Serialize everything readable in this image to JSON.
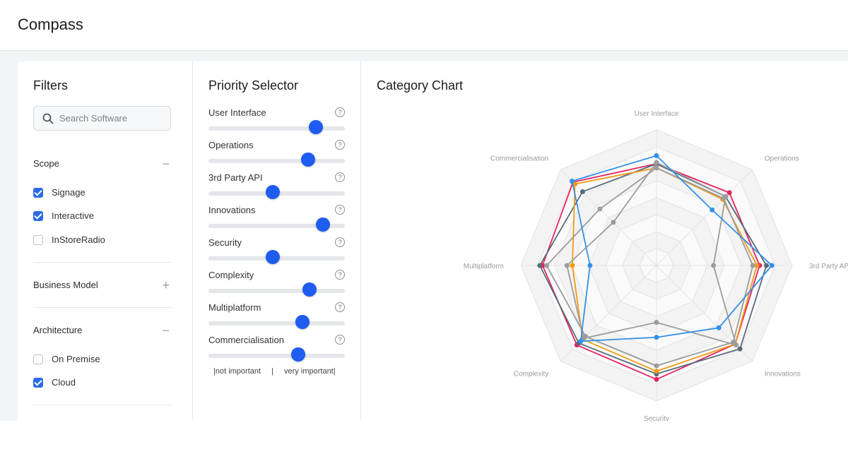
{
  "app": {
    "title": "Compass"
  },
  "filters": {
    "title": "Filters",
    "search": {
      "placeholder": "Search Software",
      "value": ""
    },
    "groups": [
      {
        "name": "Scope",
        "toggle": "−",
        "expanded": true,
        "options": [
          {
            "label": "Signage",
            "checked": true
          },
          {
            "label": "Interactive",
            "checked": true
          },
          {
            "label": "InStoreRadio",
            "checked": false
          }
        ]
      },
      {
        "name": "Business Model",
        "toggle": "+",
        "expanded": false,
        "options": []
      },
      {
        "name": "Architecture",
        "toggle": "−",
        "expanded": true,
        "options": [
          {
            "label": "On Premise",
            "checked": false
          },
          {
            "label": "Cloud",
            "checked": true
          }
        ]
      }
    ]
  },
  "priority": {
    "title": "Priority Selector",
    "help_glyph": "?",
    "sliders": [
      {
        "label": "User Interface",
        "value": 0.79
      },
      {
        "label": "Operations",
        "value": 0.73
      },
      {
        "label": "3rd Party API",
        "value": 0.47
      },
      {
        "label": "Innovations",
        "value": 0.84
      },
      {
        "label": "Security",
        "value": 0.47
      },
      {
        "label": "Complexity",
        "value": 0.74
      },
      {
        "label": "Multiplatform",
        "value": 0.69
      },
      {
        "label": "Commercialisation",
        "value": 0.66
      }
    ],
    "scale": {
      "low": "|not important",
      "sep": "|",
      "high": "very important|"
    }
  },
  "chart": {
    "title": "Category Chart"
  },
  "chart_data": {
    "type": "radar",
    "axes": [
      "User Interface",
      "Operations",
      "3rd Party API",
      "Innovations",
      "Security",
      "Complexity",
      "Multiplatform",
      "Commercialisation"
    ],
    "scale_max": 10,
    "rings": 8,
    "grid": true,
    "series": [
      {
        "color": "#e5245f",
        "values": [
          7.5,
          7.6,
          7.6,
          8.2,
          8.4,
          8.3,
          8.4,
          8.7
        ]
      },
      {
        "color": "#586b7c",
        "values": [
          7.5,
          7.2,
          8.1,
          8.7,
          8.0,
          8.1,
          8.6,
          7.7
        ]
      },
      {
        "color": "#f29a14",
        "values": [
          7.2,
          6.9,
          7.4,
          8.2,
          7.8,
          7.7,
          6.2,
          8.5
        ]
      },
      {
        "color": "#9c9c9c",
        "values": [
          7.6,
          7.2,
          4.2,
          8.3,
          4.2,
          7.6,
          6.6,
          4.5
        ]
      },
      {
        "color": "#9c9c9c",
        "values": [
          7.2,
          7.0,
          7.1,
          8.0,
          7.4,
          7.4,
          8.1,
          5.9
        ]
      },
      {
        "color": "#3391e8",
        "values": [
          8.1,
          5.8,
          8.5,
          6.5,
          5.3,
          7.9,
          4.9,
          8.8
        ]
      }
    ]
  }
}
